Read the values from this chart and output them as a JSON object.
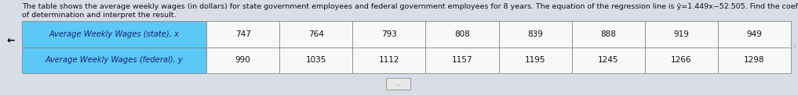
{
  "title_line1": "The table shows the average weekly wages (in dollars) for state government employees and federal government employees for 8 years. The equation of the regression line is ŷ=1.449x−52.505. Find the coefficient",
  "title_line2": "of determination and interpret the result.",
  "row1_label": "Average Weekly Wages (state), x",
  "row2_label": "Average Weekly Wages (federal), y",
  "row1_values": [
    747,
    764,
    793,
    808,
    839,
    888,
    919,
    949
  ],
  "row2_values": [
    990,
    1035,
    1112,
    1157,
    1195,
    1245,
    1266,
    1298
  ],
  "label_bg_color": "#5bc8f5",
  "data_bg_color": "#f8f8f8",
  "outer_bg_color": "#d8dde6",
  "title_fontsize": 6.8,
  "table_fontsize": 7.5,
  "label_fontsize": 7.2,
  "title_color": "#111111",
  "cell_text_color": "#111111",
  "label_text_color": "#1a2080",
  "dots_text": "...",
  "back_arrow": "←"
}
